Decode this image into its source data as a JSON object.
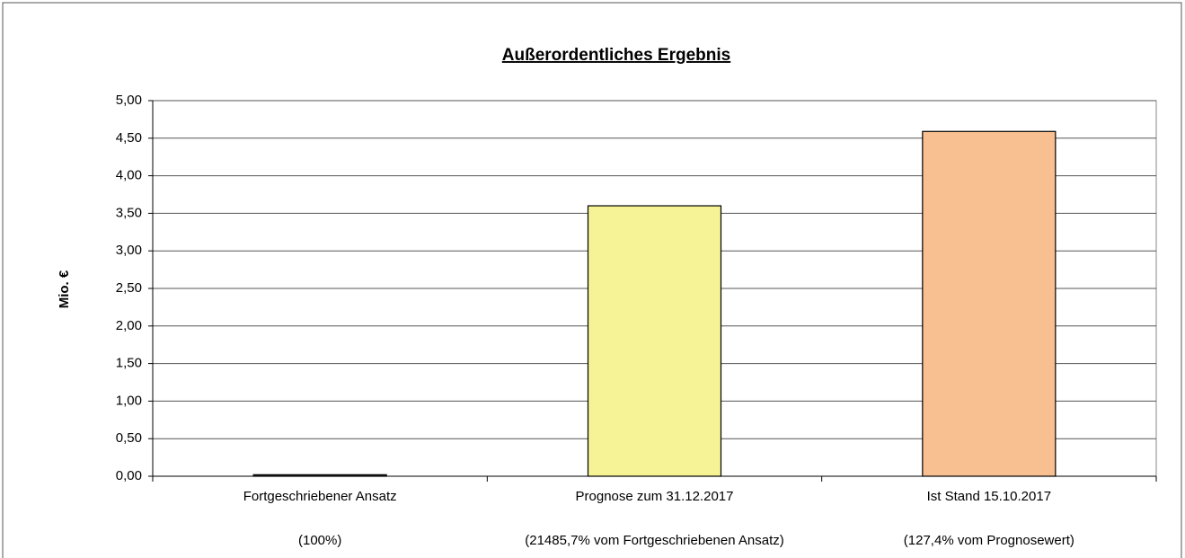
{
  "chart_data": {
    "type": "bar",
    "title": "Außerordentliches Ergebnis",
    "y_label": "Mio. €",
    "categories": [
      "Fortgeschriebener Ansatz",
      "Prognose zum 31.12.2017",
      "Ist Stand 15.10.2017"
    ],
    "category_notes": [
      "(100%)",
      "(21485,7% vom Fortgeschriebenen Ansatz)",
      "(127,4% vom Prognosewert)"
    ],
    "values": [
      0.02,
      3.6,
      4.59
    ],
    "colors": [
      "#333333",
      "#f5f396",
      "#f8c090"
    ],
    "ylim": [
      0,
      5
    ],
    "yticks": [
      {
        "value": 0,
        "label": "0,00"
      },
      {
        "value": 0.5,
        "label": "0,50"
      },
      {
        "value": 1,
        "label": "1,00"
      },
      {
        "value": 1.5,
        "label": "1,50"
      },
      {
        "value": 2,
        "label": "2,00"
      },
      {
        "value": 2.5,
        "label": "2,50"
      },
      {
        "value": 3,
        "label": "3,00"
      },
      {
        "value": 3.5,
        "label": "3,50"
      },
      {
        "value": 4,
        "label": "4,00"
      },
      {
        "value": 4.5,
        "label": "4,50"
      },
      {
        "value": 5,
        "label": "5,00"
      }
    ],
    "grid": true
  }
}
